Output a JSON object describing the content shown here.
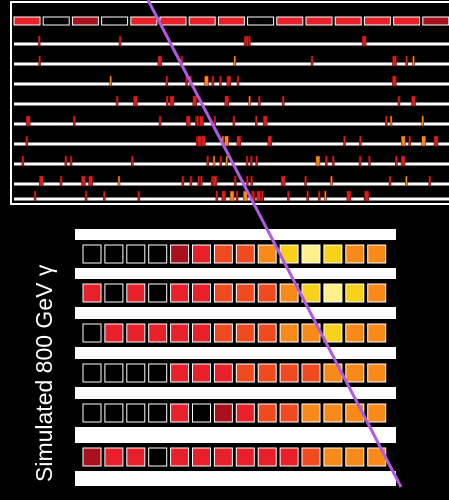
{
  "label": "Simulated 800 GeV γ"
}
